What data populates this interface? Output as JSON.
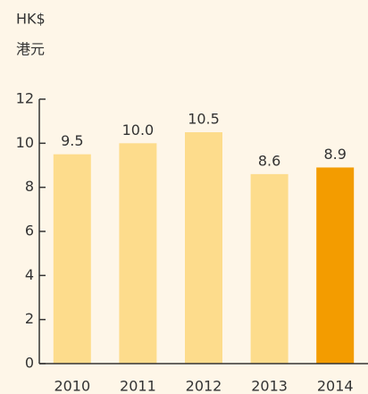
{
  "chart_data": {
    "type": "bar",
    "title": "HK$",
    "subtitle": "港元",
    "categories": [
      "2010",
      "2011",
      "2012",
      "2013",
      "2014"
    ],
    "values": [
      9.5,
      10.0,
      10.5,
      8.6,
      8.9
    ],
    "value_labels": [
      "9.5",
      "10.0",
      "10.5",
      "8.6",
      "8.9"
    ],
    "colors": [
      "#fddc8c",
      "#fddc8c",
      "#fddc8c",
      "#fddc8c",
      "#f39c00"
    ],
    "ylim": [
      0,
      12
    ],
    "yticks": [
      0,
      2,
      4,
      6,
      8,
      10,
      12
    ],
    "grid": false
  }
}
